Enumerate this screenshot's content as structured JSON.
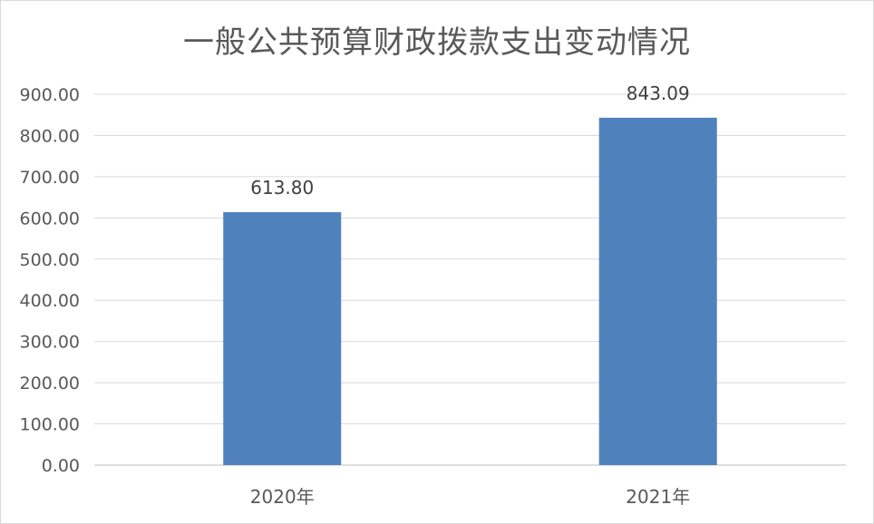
{
  "chart_data": {
    "type": "bar",
    "title": "一般公共预算财政拨款支出变动情况",
    "categories": [
      "2020年",
      "2021年"
    ],
    "values": [
      613.8,
      843.09
    ],
    "data_labels": [
      "613.80",
      "843.09"
    ],
    "ylim": [
      0,
      900
    ],
    "yticks": [
      "0.00",
      "100.00",
      "200.00",
      "300.00",
      "400.00",
      "500.00",
      "600.00",
      "700.00",
      "800.00",
      "900.00"
    ],
    "ytick_values": [
      0,
      100,
      200,
      300,
      400,
      500,
      600,
      700,
      800,
      900
    ],
    "grid": true,
    "legend": "none",
    "bar_color": "#4f81bd",
    "grid_color": "#d9d9d9"
  }
}
